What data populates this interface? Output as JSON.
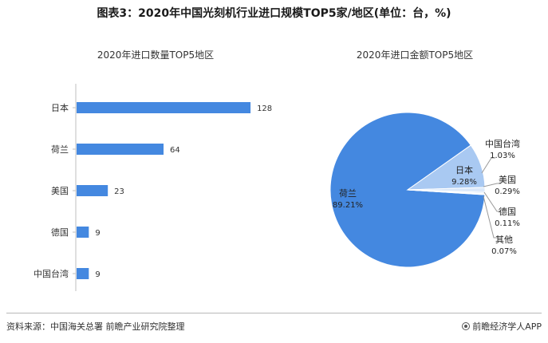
{
  "title": "图表3：2020年中国光刻机行业进口规模TOP5家/地区(单位：台，%)",
  "source": "资料来源：中国海关总署 前瞻产业研究院整理",
  "brand": "前瞻经济学人APP",
  "colors": {
    "bar": "#4488e0",
    "pie_main": "#4488e0",
    "pie_japan": "#a9c9f2",
    "pie_small": "#dce9fa",
    "leader": "#999999"
  },
  "chart_data": [
    {
      "type": "bar",
      "orientation": "horizontal",
      "title": "2020年进口数量TOP5地区",
      "categories": [
        "日本",
        "荷兰",
        "美国",
        "德国",
        "中国台湾"
      ],
      "values": [
        128,
        64,
        23,
        9,
        9
      ],
      "value_labels": [
        "128",
        "64",
        "23",
        "9",
        "9"
      ],
      "xlim": [
        0,
        140
      ],
      "grid": false
    },
    {
      "type": "pie",
      "title": "2020年进口金额TOP5地区",
      "slices": [
        {
          "name": "荷兰",
          "value": 89.21,
          "label": "89.21%"
        },
        {
          "name": "日本",
          "value": 9.28,
          "label": "9.28%"
        },
        {
          "name": "中国台湾",
          "value": 1.03,
          "label": "1.03%"
        },
        {
          "name": "美国",
          "value": 0.29,
          "label": "0.29%"
        },
        {
          "name": "德国",
          "value": 0.11,
          "label": "0.11%"
        },
        {
          "name": "其他",
          "value": 0.07,
          "label": "0.07%"
        }
      ]
    }
  ]
}
